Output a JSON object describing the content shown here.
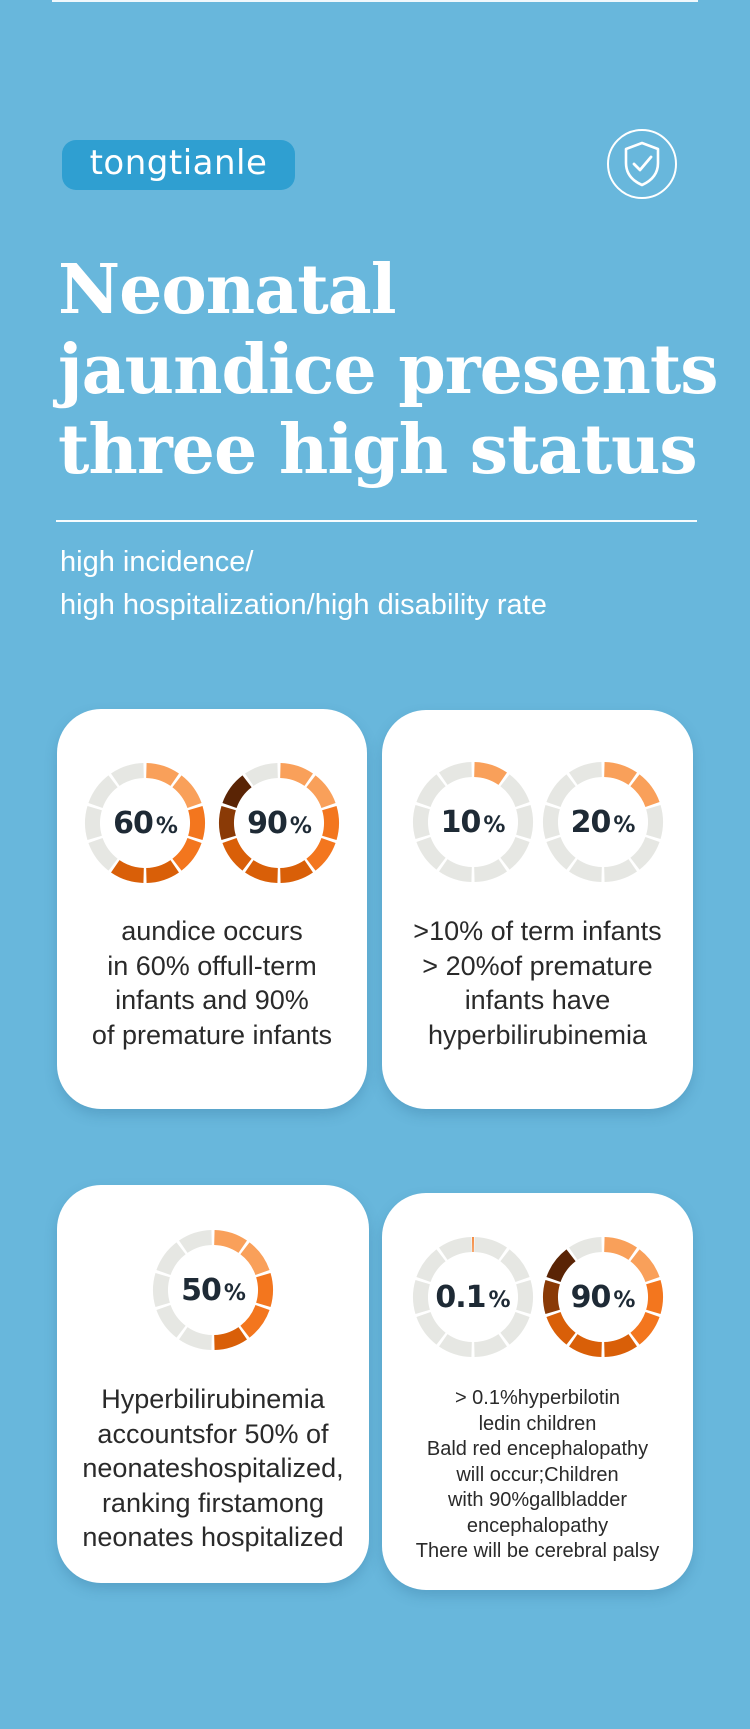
{
  "brand": {
    "logo_text": "tongtianle",
    "logo_color": "#2f9fd1"
  },
  "colors": {
    "background": "#68b7dc",
    "ring_gray": "#e6e7e3",
    "orange_light": "#f9a05a",
    "orange": "#f3761e",
    "orange_dark": "#d95f08",
    "brown": "#8a3a06",
    "brown_dark": "#5a2405"
  },
  "header": {
    "title": "Neonatal jaundice presents three high status",
    "subtitle_lines": [
      "high incidence/",
      "high hospitalization/high disability rate"
    ]
  },
  "cards": [
    {
      "donuts": [
        {
          "value": "60",
          "unit": "%",
          "fill_fraction": 0.6
        },
        {
          "value": "90",
          "unit": "%",
          "fill_fraction": 0.9
        }
      ],
      "text_lines": [
        "aundice occurs",
        "in 60% offull-term",
        "infants and 90%",
        "of premature infants"
      ]
    },
    {
      "donuts": [
        {
          "value": "10",
          "unit": "%",
          "fill_fraction": 0.1
        },
        {
          "value": "20",
          "unit": "%",
          "fill_fraction": 0.2
        }
      ],
      "text_lines": [
        ">10% of term infants",
        "> 20%of premature",
        "infants have",
        "hyperbilirubinemia"
      ]
    },
    {
      "donuts": [
        {
          "value": "50",
          "unit": "%",
          "fill_fraction": 0.5
        }
      ],
      "text_lines": [
        "Hyperbilirubinemia",
        "accountsfor 50% of",
        "neonateshospitalized,",
        "ranking firstamong",
        "neonates hospitalized"
      ]
    },
    {
      "donuts": [
        {
          "value": "0.1",
          "unit": "%",
          "fill_fraction": 0.001
        },
        {
          "value": "90",
          "unit": "%",
          "fill_fraction": 0.9
        }
      ],
      "text_lines": [
        "> 0.1%hyperbilotin",
        "ledin children",
        "Bald red encephalopathy",
        "will occur;Children",
        "with 90%gallbladder",
        "encephalopathy",
        "There will be cerebral palsy"
      ]
    }
  ]
}
